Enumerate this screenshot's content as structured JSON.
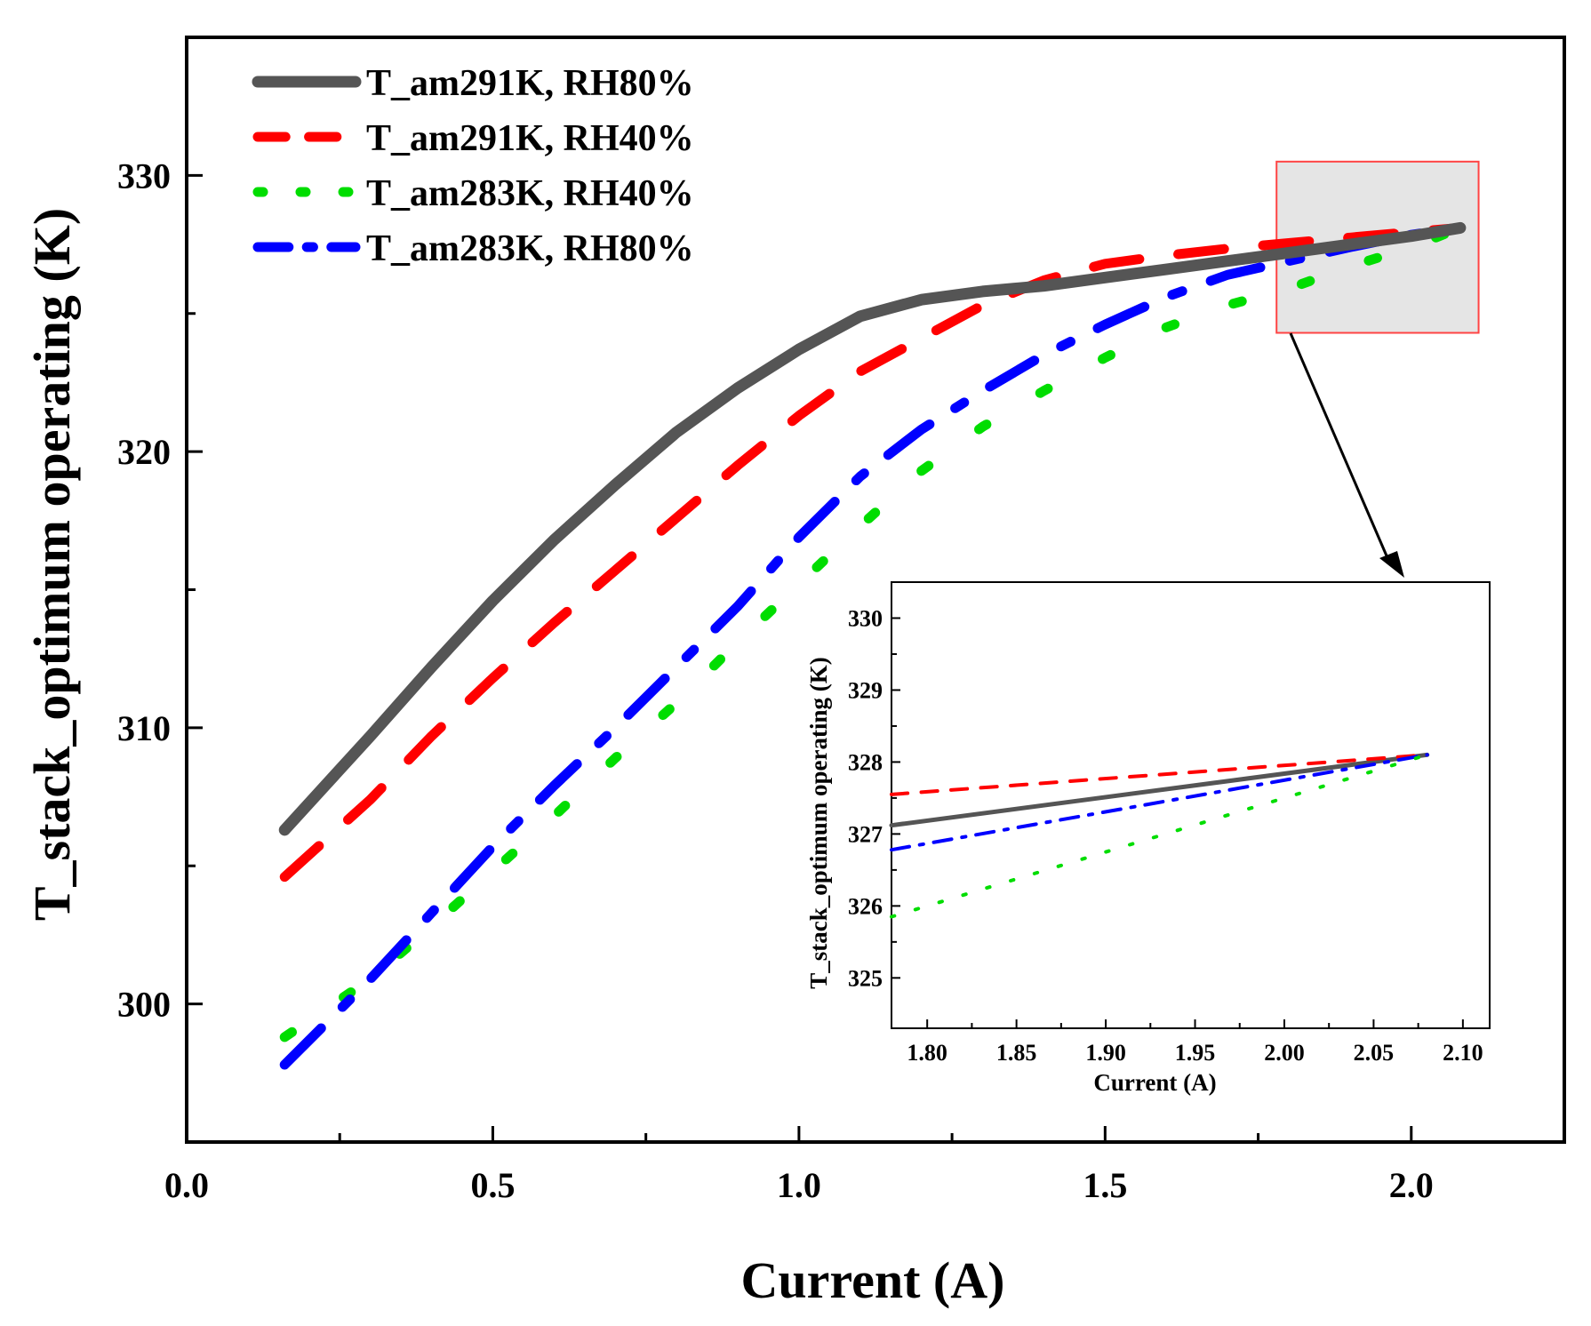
{
  "chart_data": [
    {
      "type": "line",
      "title": "",
      "xlabel": "Current (A)",
      "ylabel": "T_stack_optimum operating (K)",
      "xlim": [
        0.0,
        2.25
      ],
      "ylim": [
        295,
        335
      ],
      "xticks": [
        "0.0",
        "0.5",
        "1.0",
        "1.5",
        "2.0"
      ],
      "yticks": [
        "300",
        "310",
        "320",
        "330"
      ],
      "grid": false,
      "legend_position": "top-left",
      "zoom_box": {
        "x": [
          1.78,
          2.11
        ],
        "y": [
          324.3,
          330.5
        ]
      },
      "series": [
        {
          "name": "T_am291K, RH80%",
          "color": "#555555",
          "style": "solid",
          "x": [
            0.16,
            0.3,
            0.4,
            0.5,
            0.6,
            0.7,
            0.8,
            0.9,
            1.0,
            1.1,
            1.2,
            1.3,
            1.4,
            1.5,
            1.6,
            1.7,
            1.8,
            1.9,
            2.0,
            2.08
          ],
          "y": [
            306.3,
            309.7,
            312.2,
            314.6,
            316.8,
            318.8,
            320.7,
            322.3,
            323.7,
            324.9,
            325.5,
            325.8,
            326.0,
            326.3,
            326.6,
            326.9,
            327.2,
            327.5,
            327.8,
            328.1
          ]
        },
        {
          "name": "T_am291K, RH40%",
          "color": "#ff0000",
          "style": "dashed",
          "x": [
            0.16,
            0.3,
            0.4,
            0.5,
            0.6,
            0.7,
            0.8,
            0.9,
            1.0,
            1.1,
            1.2,
            1.3,
            1.4,
            1.5,
            1.6,
            1.7,
            1.8,
            1.9,
            2.0,
            2.08
          ],
          "y": [
            304.6,
            307.4,
            309.7,
            311.8,
            313.8,
            315.7,
            317.6,
            319.5,
            321.3,
            322.9,
            324.1,
            325.3,
            326.2,
            326.8,
            327.1,
            327.35,
            327.55,
            327.75,
            327.95,
            328.1
          ]
        },
        {
          "name": "T_am283K, RH40%",
          "color": "#00dd00",
          "style": "dotted",
          "x": [
            0.16,
            0.3,
            0.4,
            0.5,
            0.6,
            0.7,
            0.8,
            0.9,
            1.0,
            1.1,
            1.2,
            1.3,
            1.4,
            1.5,
            1.6,
            1.7,
            1.8,
            1.9,
            2.0,
            2.08
          ],
          "y": [
            298.8,
            300.9,
            302.8,
            304.8,
            306.8,
            308.9,
            310.9,
            313.1,
            315.2,
            317.3,
            319.3,
            320.9,
            322.2,
            323.4,
            324.5,
            325.3,
            325.9,
            326.7,
            327.4,
            328.1
          ]
        },
        {
          "name": "T_am283K, RH80%",
          "color": "#0000ff",
          "style": "dashdot",
          "x": [
            0.16,
            0.3,
            0.4,
            0.5,
            0.6,
            0.7,
            0.8,
            0.9,
            1.0,
            1.1,
            1.2,
            1.3,
            1.4,
            1.5,
            1.6,
            1.7,
            1.8,
            1.9,
            2.0,
            2.08
          ],
          "y": [
            297.8,
            300.9,
            303.3,
            305.7,
            307.9,
            310.0,
            312.2,
            314.4,
            316.9,
            319.1,
            320.8,
            322.2,
            323.5,
            324.6,
            325.6,
            326.4,
            326.9,
            327.4,
            327.85,
            328.1
          ]
        }
      ]
    },
    {
      "type": "line",
      "title": "",
      "xlabel": "Current (A)",
      "ylabel": "T_stack_optimum operating (K)",
      "xlim": [
        1.78,
        2.115
      ],
      "ylim": [
        324.3,
        330.5
      ],
      "xticks": [
        "1.80",
        "1.85",
        "1.90",
        "1.95",
        "2.00",
        "2.05",
        "2.10"
      ],
      "yticks": [
        "325",
        "326",
        "327",
        "328",
        "329",
        "330"
      ],
      "grid": false,
      "series": [
        {
          "color": "#555555",
          "style": "solid",
          "x": [
            1.78,
            2.08
          ],
          "y": [
            327.12,
            328.1
          ]
        },
        {
          "color": "#ff0000",
          "style": "dashed",
          "x": [
            1.78,
            2.08
          ],
          "y": [
            327.55,
            328.1
          ]
        },
        {
          "color": "#0000ff",
          "style": "dashdot",
          "x": [
            1.78,
            2.08
          ],
          "y": [
            326.78,
            328.1
          ]
        },
        {
          "color": "#00dd00",
          "style": "dotted",
          "x": [
            1.78,
            2.08
          ],
          "y": [
            325.85,
            328.1
          ]
        }
      ]
    }
  ]
}
